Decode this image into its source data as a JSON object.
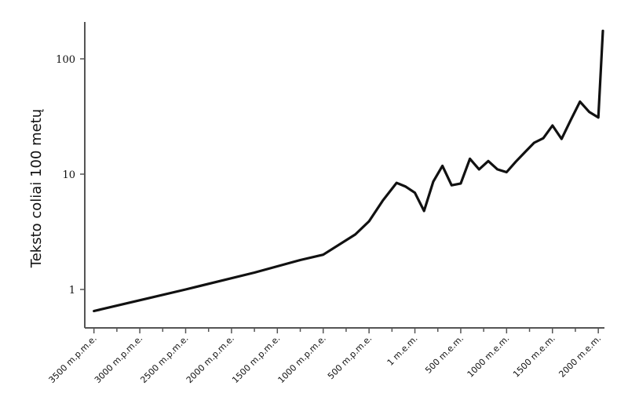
{
  "chart_data": {
    "type": "line",
    "title": "",
    "xlabel": "",
    "ylabel": "Teksto coliai 100 metų",
    "y_scale": "log",
    "ylim": [
      0.45,
      220
    ],
    "xlim": [
      -3600,
      2050
    ],
    "grid": false,
    "x_ticks": [
      {
        "value": -3500,
        "label": "3500 m.p.m.e."
      },
      {
        "value": -3000,
        "label": "3000 m.p.m.e."
      },
      {
        "value": -2500,
        "label": "2500 m.p.m.e."
      },
      {
        "value": -2000,
        "label": "2000 m.p.m.e."
      },
      {
        "value": -1500,
        "label": "1500 m.p.m.e."
      },
      {
        "value": -1000,
        "label": "1000 m.p.m.e."
      },
      {
        "value": -500,
        "label": "500 m.p.m.e."
      },
      {
        "value": 0,
        "label": "1 m.e.m."
      },
      {
        "value": 500,
        "label": "500 m.e.m."
      },
      {
        "value": 1000,
        "label": "1000 m.e.m."
      },
      {
        "value": 1500,
        "label": "1500 m.e.m."
      },
      {
        "value": 2000,
        "label": "2000 m.e.m."
      }
    ],
    "y_ticks": [
      {
        "value": 1,
        "label": "1"
      },
      {
        "value": 10,
        "label": "10"
      },
      {
        "value": 100,
        "label": "100"
      }
    ],
    "series": [
      {
        "color": "#111111",
        "x": [
          -3500,
          -2500,
          -1750,
          -1250,
          -1000,
          -650,
          -500,
          -350,
          -200,
          -100,
          0,
          100,
          200,
          300,
          400,
          500,
          600,
          700,
          800,
          900,
          1000,
          1100,
          1200,
          1300,
          1400,
          1500,
          1600,
          1700,
          1800,
          1900,
          2000,
          2050
        ],
        "y": [
          0.65,
          1.0,
          1.4,
          1.8,
          2.0,
          3.0,
          3.9,
          5.9,
          8.4,
          7.8,
          6.9,
          4.8,
          8.6,
          11.8,
          8.0,
          8.3,
          13.6,
          11.0,
          13.0,
          11.0,
          10.4,
          12.8,
          15.5,
          18.7,
          20.5,
          26.4,
          20.2,
          29.5,
          42.5,
          34.7,
          31.0,
          175.0
        ]
      }
    ]
  }
}
